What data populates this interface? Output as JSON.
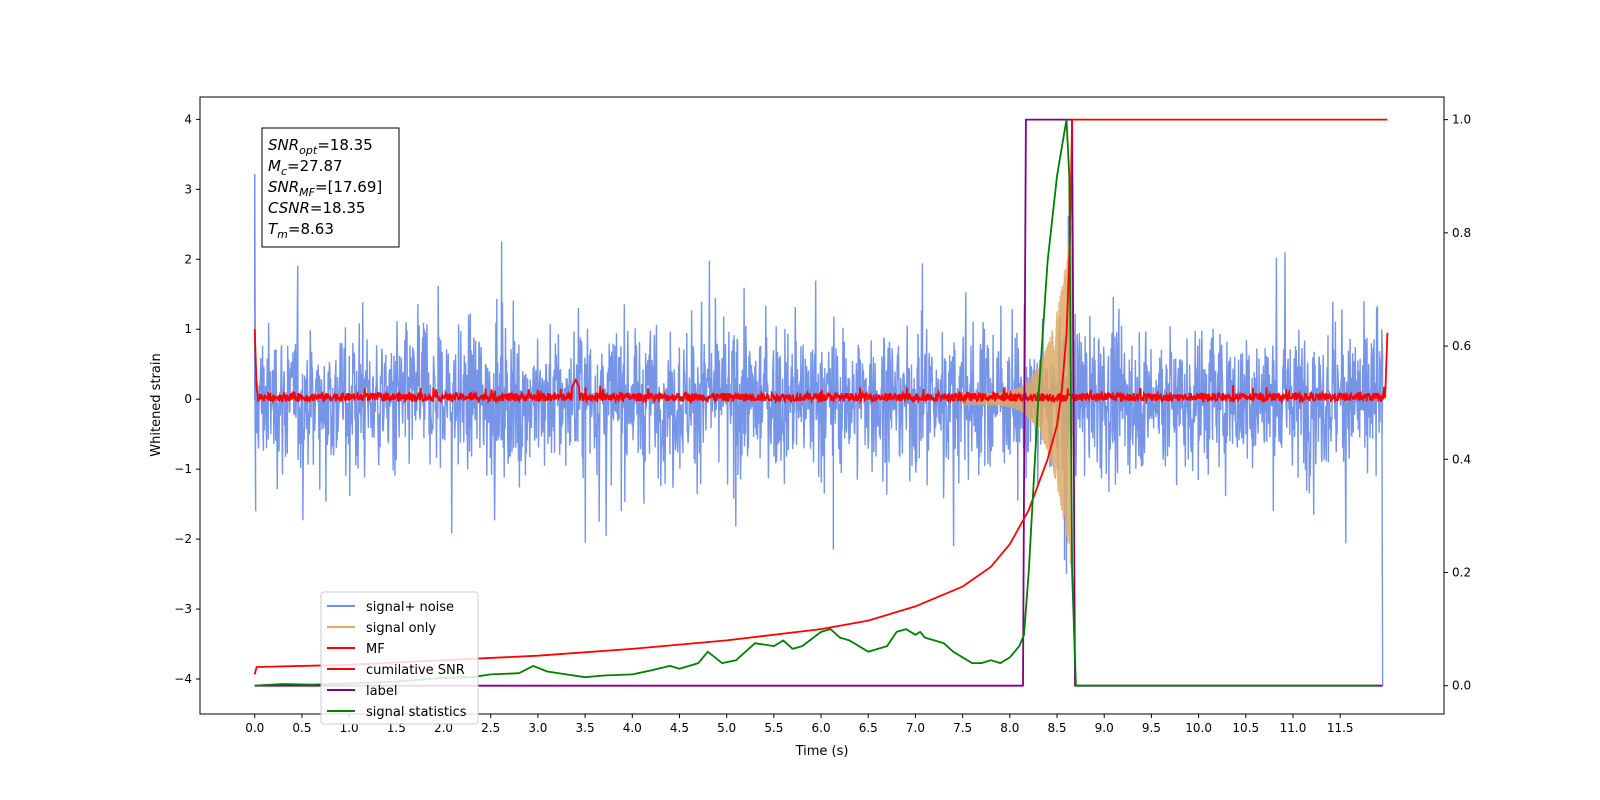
{
  "chart_data": {
    "type": "line",
    "xlabel": "Time (s)",
    "ylabel": "Whitened strain",
    "xlim": [
      -0.58,
      12.6
    ],
    "ylim": [
      -4.5,
      4.32
    ],
    "y2lim": [
      -0.05,
      1.04
    ],
    "xticks": [
      "0.0",
      "0.5",
      "1.0",
      "1.5",
      "2.0",
      "2.5",
      "3.0",
      "3.5",
      "4.0",
      "4.5",
      "5.0",
      "5.5",
      "6.0",
      "6.5",
      "7.0",
      "7.5",
      "8.0",
      "8.5",
      "9.0",
      "9.5",
      "10.0",
      "10.5",
      "11.0",
      "11.5"
    ],
    "yticks": [
      "4",
      "3",
      "2",
      "1",
      "0",
      "−1",
      "−2",
      "−3",
      "−4"
    ],
    "y2ticks": [
      "1.0",
      "0.8",
      "0.6",
      "0.4",
      "0.2",
      "0.0"
    ],
    "grid": false,
    "legend_position": "lower-left",
    "colors": {
      "signal_noise": "#6f8fe8",
      "signal_only": "#ddaa66",
      "mf": "#ff0000",
      "cumulative_snr": "#ff0000",
      "label": "#800080",
      "signal_statistics": "#008000"
    },
    "annotation": {
      "lines": [
        {
          "sym": "SNR",
          "sub": "opt",
          "value": "=18.35"
        },
        {
          "sym": "M",
          "sub": "c",
          "value": "=27.87"
        },
        {
          "sym": "SNR",
          "sub": "MF",
          "value": "=[17.69]"
        },
        {
          "sym": "CSNR",
          "sub": "",
          "value": "=18.35"
        },
        {
          "sym": "T",
          "sub": "m",
          "value": "=8.63"
        }
      ]
    },
    "legend": [
      "signal+ noise",
      "signal only",
      "MF",
      "cumilative SNR",
      "label",
      "signal statistics"
    ],
    "series": [
      {
        "name": "label",
        "axis": "right",
        "x": [
          0.0,
          8.14,
          8.17,
          8.66,
          8.69,
          11.95
        ],
        "values": [
          0.0,
          0.0,
          1.0,
          1.0,
          0.0,
          0.0
        ]
      },
      {
        "name": "cumilative SNR",
        "axis": "right",
        "x": [
          0.0,
          0.02,
          1.0,
          2.0,
          3.0,
          4.0,
          5.0,
          6.0,
          6.5,
          7.0,
          7.5,
          7.8,
          8.0,
          8.2,
          8.4,
          8.5,
          8.55,
          8.6,
          8.64,
          8.66,
          8.7,
          9.0,
          10.0,
          11.0,
          12.0
        ],
        "values": [
          0.02,
          0.033,
          0.037,
          0.045,
          0.053,
          0.065,
          0.08,
          0.1,
          0.115,
          0.14,
          0.175,
          0.21,
          0.25,
          0.31,
          0.4,
          0.46,
          0.52,
          0.62,
          0.8,
          1.0,
          1.0,
          1.0,
          1.0,
          1.0,
          1.0
        ]
      },
      {
        "name": "signal statistics",
        "axis": "right",
        "x": [
          0.0,
          0.3,
          0.6,
          1.0,
          1.5,
          2.0,
          2.3,
          2.5,
          2.8,
          2.95,
          3.1,
          3.3,
          3.5,
          3.7,
          4.0,
          4.2,
          4.4,
          4.5,
          4.7,
          4.8,
          4.95,
          5.1,
          5.3,
          5.5,
          5.6,
          5.7,
          5.8,
          6.0,
          6.1,
          6.2,
          6.3,
          6.5,
          6.7,
          6.8,
          6.9,
          7.0,
          7.05,
          7.1,
          7.2,
          7.3,
          7.4,
          7.6,
          7.7,
          7.8,
          7.9,
          8.0,
          8.1,
          8.15,
          8.2,
          8.3,
          8.4,
          8.5,
          8.55,
          8.6,
          8.63,
          8.66,
          8.7,
          9.0,
          10.0,
          11.0,
          11.9
        ],
        "values": [
          0.0,
          0.003,
          0.002,
          0.004,
          0.007,
          0.014,
          0.015,
          0.02,
          0.022,
          0.035,
          0.025,
          0.02,
          0.015,
          0.018,
          0.02,
          0.027,
          0.035,
          0.03,
          0.04,
          0.06,
          0.04,
          0.045,
          0.075,
          0.07,
          0.08,
          0.065,
          0.07,
          0.095,
          0.1,
          0.085,
          0.08,
          0.06,
          0.07,
          0.095,
          0.1,
          0.09,
          0.095,
          0.085,
          0.08,
          0.075,
          0.06,
          0.04,
          0.04,
          0.045,
          0.04,
          0.05,
          0.07,
          0.09,
          0.2,
          0.5,
          0.75,
          0.9,
          0.95,
          1.0,
          0.9,
          0.2,
          0.0,
          0.0,
          0.0,
          0.0,
          0.0
        ]
      }
    ],
    "noise_band": {
      "name": "signal+ noise",
      "x_range": [
        0.0,
        11.95
      ],
      "typical_amplitude": 1.3,
      "peak_values": [
        3.22,
        -2.15,
        2.62,
        -2.5,
        -4.1
      ]
    },
    "signal_only_chirp": {
      "name": "signal only",
      "x_range": [
        7.5,
        8.66
      ],
      "peak_amplitude": 2.5
    },
    "mf_trace": {
      "name": "MF",
      "x_range": [
        0.0,
        12.0
      ],
      "baseline": 0.03,
      "spread": 0.12,
      "start_value": 1.0,
      "bump_x": 3.4,
      "bump_value": 0.28
    }
  }
}
